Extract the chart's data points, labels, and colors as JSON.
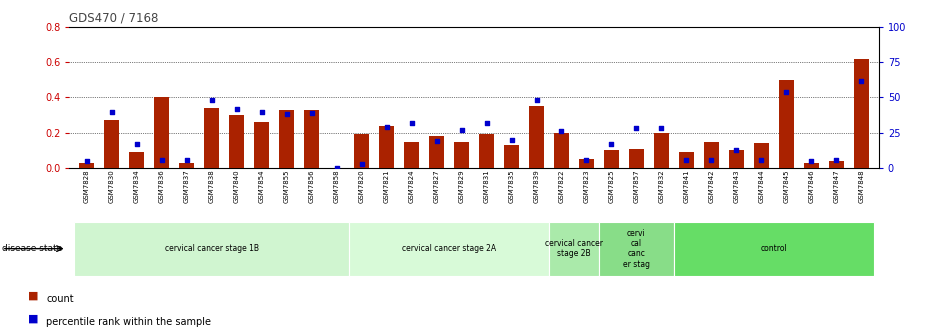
{
  "title": "GDS470 / 7168",
  "samples": [
    "GSM7828",
    "GSM7830",
    "GSM7834",
    "GSM7836",
    "GSM7837",
    "GSM7838",
    "GSM7840",
    "GSM7854",
    "GSM7855",
    "GSM7856",
    "GSM7858",
    "GSM7820",
    "GSM7821",
    "GSM7824",
    "GSM7827",
    "GSM7829",
    "GSM7831",
    "GSM7835",
    "GSM7839",
    "GSM7822",
    "GSM7823",
    "GSM7825",
    "GSM7857",
    "GSM7832",
    "GSM7841",
    "GSM7842",
    "GSM7843",
    "GSM7844",
    "GSM7845",
    "GSM7846",
    "GSM7847",
    "GSM7848"
  ],
  "counts": [
    0.03,
    0.27,
    0.09,
    0.4,
    0.03,
    0.34,
    0.3,
    0.26,
    0.33,
    0.33,
    0.0,
    0.19,
    0.24,
    0.15,
    0.18,
    0.15,
    0.19,
    0.13,
    0.35,
    0.2,
    0.05,
    0.1,
    0.11,
    0.2,
    0.09,
    0.15,
    0.1,
    0.14,
    0.5,
    0.03,
    0.04,
    0.62
  ],
  "percentiles": [
    5,
    40,
    17,
    6,
    6,
    48,
    42,
    40,
    38,
    39,
    0,
    3,
    29,
    32,
    19,
    27,
    32,
    20,
    48,
    26,
    6,
    17,
    28,
    28,
    6,
    6,
    13,
    6,
    54,
    5,
    6,
    62
  ],
  "groups": [
    {
      "label": "cervical cancer stage 1B",
      "start": 0,
      "end": 10,
      "color": "#d0f5d0"
    },
    {
      "label": "cervical cancer stage 2A",
      "start": 11,
      "end": 18,
      "color": "#d8fad8"
    },
    {
      "label": "cervical cancer\nstage 2B",
      "start": 19,
      "end": 20,
      "color": "#aaeaaa"
    },
    {
      "label": "cervi\ncal\ncanc\ner stag",
      "start": 21,
      "end": 23,
      "color": "#88dd88"
    },
    {
      "label": "control",
      "start": 24,
      "end": 31,
      "color": "#66dd66"
    }
  ],
  "ylim_left": [
    0,
    0.8
  ],
  "ylim_right": [
    0,
    100
  ],
  "yticks_left": [
    0.0,
    0.2,
    0.4,
    0.6,
    0.8
  ],
  "yticks_right": [
    0,
    25,
    50,
    75,
    100
  ],
  "bar_color": "#aa2200",
  "dot_color": "#0000cc",
  "left_axis_color": "#cc0000",
  "right_axis_color": "#0000cc",
  "title_color": "#444444"
}
